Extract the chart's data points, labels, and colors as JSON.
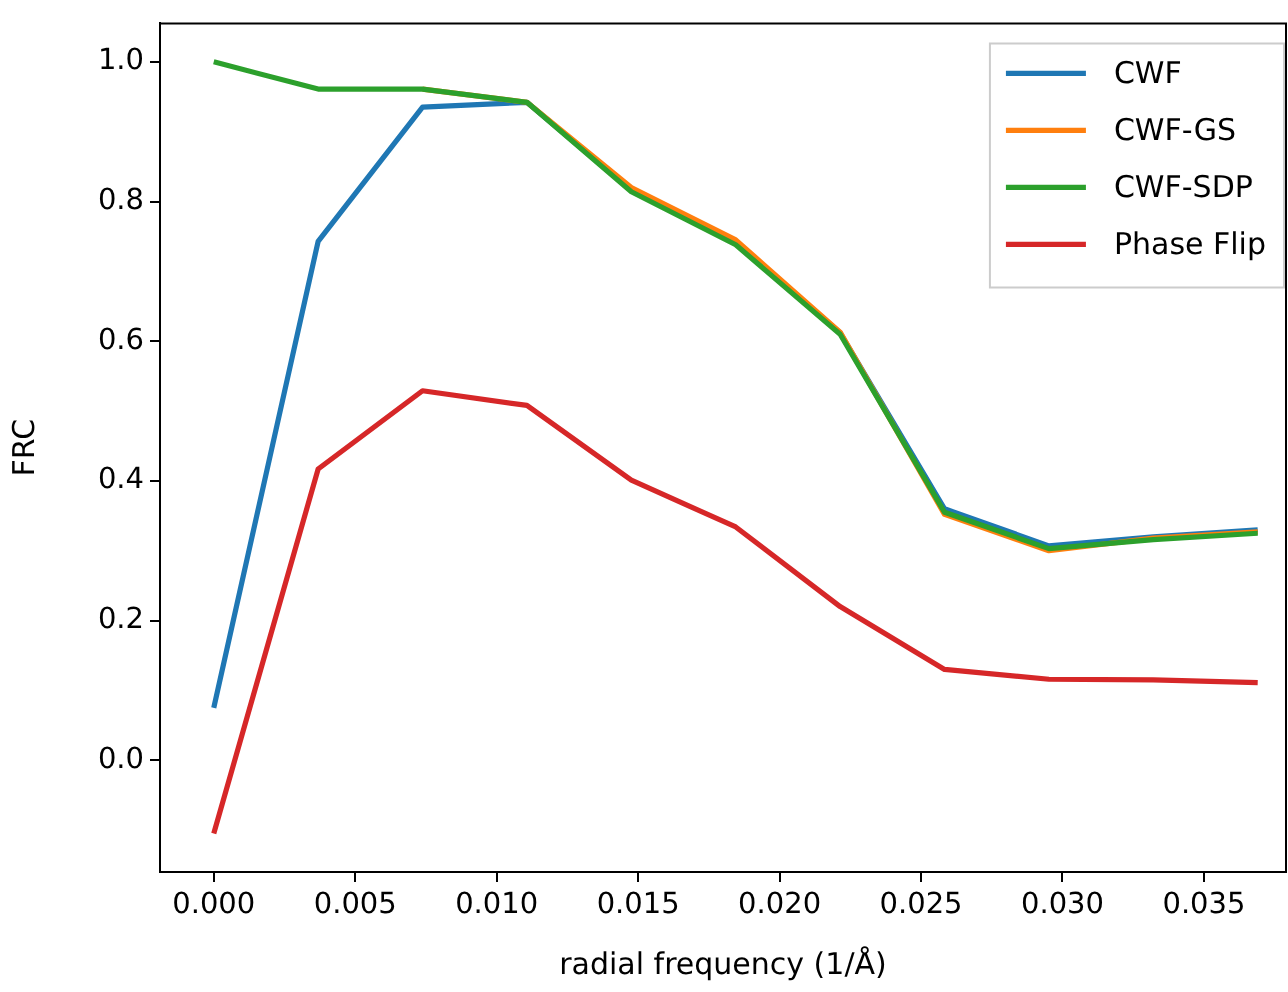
{
  "chart_data": {
    "type": "line",
    "xlabel": "radial frequency (1/Å)",
    "ylabel": "FRC",
    "x": [
      0,
      0.00369,
      0.00738,
      0.01107,
      0.01476,
      0.01845,
      0.02214,
      0.02583,
      0.02952,
      0.03321,
      0.0369
    ],
    "series": [
      {
        "name": "CWF",
        "color": "#1f77b4",
        "values": [
          0.075,
          0.743,
          0.935,
          0.942,
          0.816,
          0.74,
          0.612,
          0.36,
          0.307,
          0.32,
          0.33
        ]
      },
      {
        "name": "CWF-GS",
        "color": "#ff7f0e",
        "values": [
          null,
          null,
          0.961,
          0.942,
          0.82,
          0.745,
          0.613,
          0.352,
          0.3,
          0.318,
          0.327
        ]
      },
      {
        "name": "CWF-SDP",
        "color": "#2ca02c",
        "values": [
          1.0,
          0.961,
          0.961,
          0.942,
          0.814,
          0.738,
          0.61,
          0.355,
          0.303,
          0.316,
          0.325
        ]
      },
      {
        "name": "Phase Flip",
        "color": "#d62728",
        "values": [
          -0.105,
          0.417,
          0.529,
          0.508,
          0.401,
          0.334,
          0.22,
          0.13,
          0.116,
          0.115,
          0.111
        ]
      }
    ],
    "xlim": [
      -0.0019,
      0.0379
    ],
    "xticks": [
      {
        "value": 0,
        "label": "0.000"
      },
      {
        "value": 0.005,
        "label": "0.005"
      },
      {
        "value": 0.01,
        "label": "0.010"
      },
      {
        "value": 0.015,
        "label": "0.015"
      },
      {
        "value": 0.02,
        "label": "0.020"
      },
      {
        "value": 0.025,
        "label": "0.025"
      },
      {
        "value": 0.03,
        "label": "0.030"
      },
      {
        "value": 0.035,
        "label": "0.035"
      }
    ],
    "ylim": [
      -0.16,
      1.055
    ],
    "yticks": [
      {
        "value": 0,
        "label": "0.0"
      },
      {
        "value": 0.2,
        "label": "0.2"
      },
      {
        "value": 0.4,
        "label": "0.4"
      },
      {
        "value": 0.6,
        "label": "0.6"
      },
      {
        "value": 0.8,
        "label": "0.8"
      },
      {
        "value": 1,
        "label": "1.0"
      }
    ],
    "grid": false,
    "legend": "top right",
    "marker": "none",
    "line_style": "solid"
  }
}
